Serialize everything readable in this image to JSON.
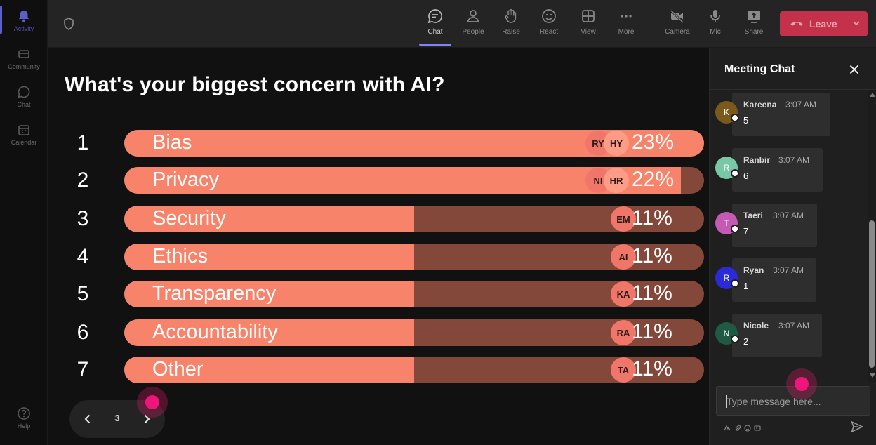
{
  "rail": {
    "items": [
      {
        "label": "Activity",
        "icon": "bell-icon"
      },
      {
        "label": "Community",
        "icon": "community-icon"
      },
      {
        "label": "Chat",
        "icon": "chat-icon"
      },
      {
        "label": "Calendar",
        "icon": "calendar-icon"
      },
      {
        "label": "Help",
        "icon": "help-icon"
      }
    ]
  },
  "toolbar": {
    "items": [
      {
        "label": "Chat",
        "icon": "chat-icon"
      },
      {
        "label": "People",
        "icon": "people-icon"
      },
      {
        "label": "Raise",
        "icon": "raise-hand-icon"
      },
      {
        "label": "React",
        "icon": "smiley-icon"
      },
      {
        "label": "View",
        "icon": "grid-view-icon"
      },
      {
        "label": "More",
        "icon": "more-icon"
      },
      {
        "label": "Camera",
        "icon": "camera-off-icon"
      },
      {
        "label": "Mic",
        "icon": "mic-icon"
      },
      {
        "label": "Share",
        "icon": "share-icon"
      }
    ],
    "leave_label": "Leave"
  },
  "poll": {
    "question": "What's your biggest concern with AI?",
    "options": [
      {
        "rank": "1",
        "label": "Bias",
        "percent": "23%",
        "fill": 1.0,
        "voters": [
          "RY",
          "HY"
        ]
      },
      {
        "rank": "2",
        "label": "Privacy",
        "percent": "22%",
        "fill": 0.96,
        "voters": [
          "NI",
          "HR"
        ]
      },
      {
        "rank": "3",
        "label": "Security",
        "percent": "11%",
        "fill": 0.5,
        "voters": [
          "EM"
        ]
      },
      {
        "rank": "4",
        "label": "Ethics",
        "percent": "11%",
        "fill": 0.5,
        "voters": [
          "AI"
        ]
      },
      {
        "rank": "5",
        "label": "Transparency",
        "percent": "11%",
        "fill": 0.5,
        "voters": [
          "KA"
        ]
      },
      {
        "rank": "6",
        "label": "Accountability",
        "percent": "11%",
        "fill": 0.5,
        "voters": [
          "RA"
        ]
      },
      {
        "rank": "7",
        "label": "Other",
        "percent": "11%",
        "fill": 0.5,
        "voters": [
          "TA"
        ]
      }
    ],
    "page": "3"
  },
  "chat": {
    "title": "Meeting Chat",
    "messages": [
      {
        "initial": "K",
        "name": "Kareena",
        "time": "3:07 AM",
        "text": "5",
        "color": "#7a5a1a"
      },
      {
        "initial": "R",
        "name": "Ranbir",
        "time": "3:07 AM",
        "text": "6",
        "color": "#78c8a8"
      },
      {
        "initial": "T",
        "name": "Taeri",
        "time": "3:07 AM",
        "text": "7",
        "color": "#c45ab4"
      },
      {
        "initial": "R",
        "name": "Ryan",
        "time": "3:07 AM",
        "text": "1",
        "color": "#2a2ad8"
      },
      {
        "initial": "N",
        "name": "Nicole",
        "time": "3:07 AM",
        "text": "2",
        "color": "#1f5a44"
      }
    ],
    "compose_placeholder": "Type message here..."
  },
  "colors": {
    "accent": "#5b5fc7",
    "bar_fill": "#f6836a",
    "bar_track": "#834839",
    "leave": "#c4314b",
    "pointer": "#f0157a"
  }
}
